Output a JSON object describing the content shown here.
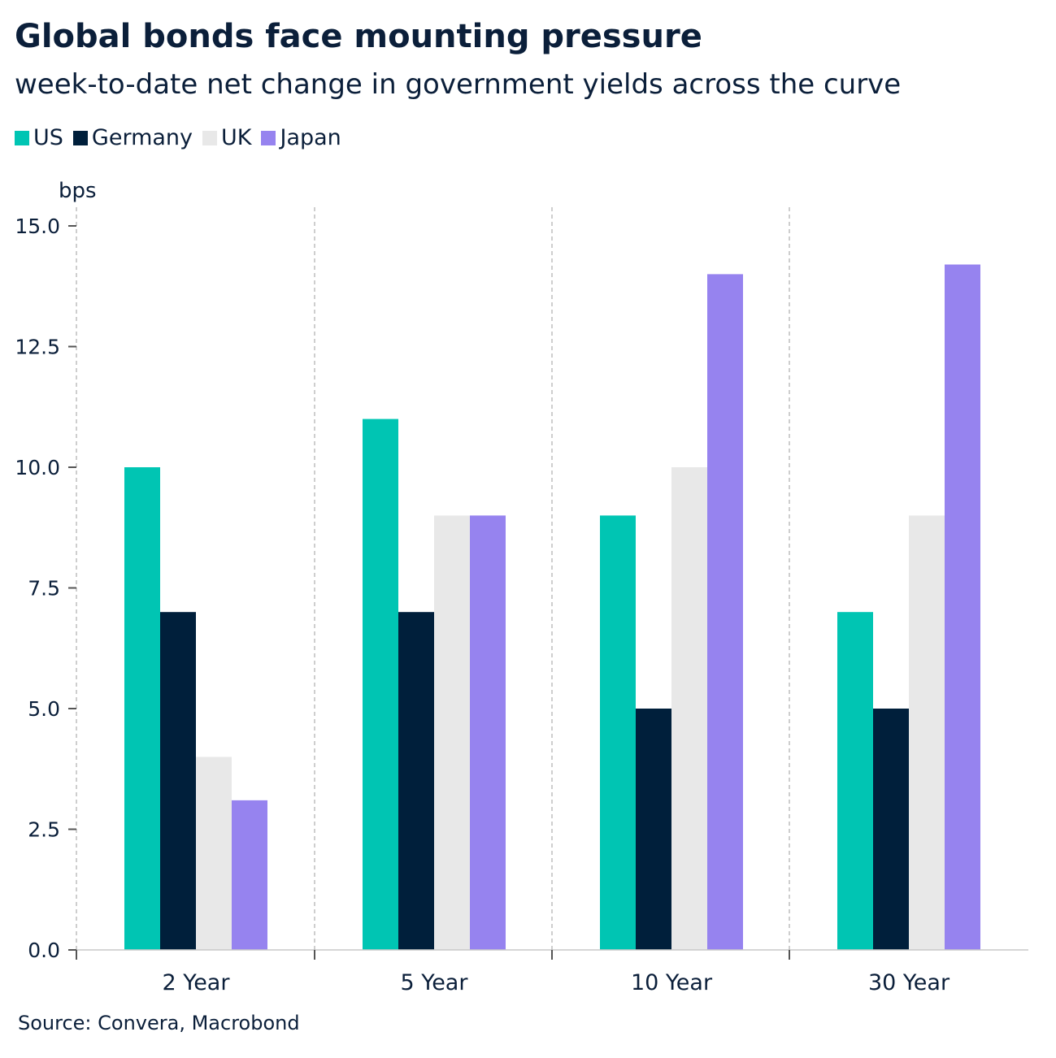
{
  "chart_data": {
    "type": "bar",
    "title": "Global bonds face mounting pressure",
    "subtitle": "week-to-date net change in government yields across the curve",
    "ylabel": "bps",
    "source": "Source: Convera, Macrobond",
    "categories": [
      "2 Year",
      "5 Year",
      "10 Year",
      "30 Year"
    ],
    "ylim": [
      0,
      15
    ],
    "yticks": [
      0,
      2.5,
      5,
      7.5,
      10,
      12.5,
      15
    ],
    "ytick_labels": [
      "0.0",
      "2.5",
      "5.0",
      "7.5",
      "10.0",
      "12.5",
      "15.0"
    ],
    "legend_position": "top-left",
    "grid": "vertical dashed separators between categories",
    "series": [
      {
        "name": "US",
        "color": "#00c5b3",
        "values": [
          10,
          11,
          9,
          7
        ]
      },
      {
        "name": "Germany",
        "color": "#001f3b",
        "values": [
          7,
          7,
          5,
          5
        ]
      },
      {
        "name": "UK",
        "color": "#e8e8e8",
        "values": [
          4,
          9,
          10,
          9
        ]
      },
      {
        "name": "Japan",
        "color": "#9683ef",
        "values": [
          3.1,
          9,
          14,
          14.2
        ]
      }
    ]
  }
}
